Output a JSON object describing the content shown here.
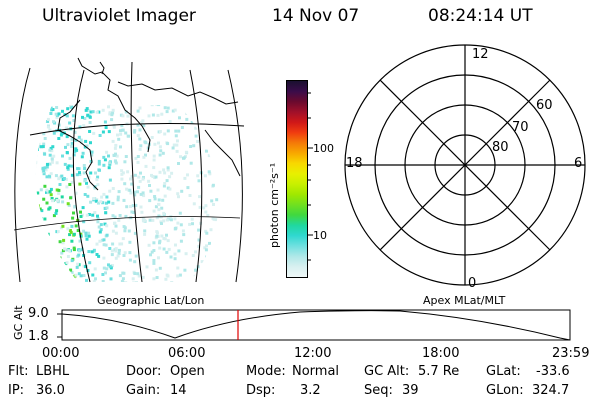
{
  "header": {
    "title": "Ultraviolet Imager",
    "date": "14 Nov 07",
    "time": "08:24:14 UT"
  },
  "colorbar": {
    "unit_label": "photon cm⁻²s⁻¹",
    "ticks": [
      "100",
      "10"
    ],
    "colors": [
      "#1a1030",
      "#3a0c4a",
      "#6a0a2e",
      "#a0102a",
      "#d01818",
      "#f03c10",
      "#f47a08",
      "#f8a800",
      "#f8d800",
      "#e8f000",
      "#c8f000",
      "#a0e800",
      "#70e020",
      "#40d840",
      "#20d8a0",
      "#30d8d0",
      "#70e0e0",
      "#b0e8e8",
      "#d8f0f0",
      "#f0f8f8"
    ]
  },
  "geo_panel": {
    "label": "Geographic Lat/Lon"
  },
  "polar_panel": {
    "label": "Apex MLat/MLT",
    "mlt_labels": {
      "top": "12",
      "bottom": "0",
      "left": "18",
      "right": "6"
    },
    "lat_labels": [
      "60",
      "70",
      "80"
    ]
  },
  "altitude_plot": {
    "axis_label": "GC Alt",
    "y_ticks": [
      "9.0",
      "1.8"
    ],
    "x_ticks": [
      "00:00",
      "06:00",
      "12:00",
      "18:00",
      "23:59"
    ],
    "marker_color": "#e00000"
  },
  "status": {
    "col1": {
      "flt_label": "Flt:",
      "flt_value": "LBHL",
      "ip_label": "IP:",
      "ip_value": "36.0"
    },
    "col2": {
      "door_label": "Door:",
      "door_value": "Open",
      "gain_label": "Gain:",
      "gain_value": "14"
    },
    "col3": {
      "mode_label": "Mode:",
      "mode_value": "Normal",
      "dsp_label": "Dsp:",
      "dsp_value": "3.2"
    },
    "col4": {
      "gcalt_label": "GC Alt:",
      "gcalt_value": "5.7 Re",
      "seq_label": "Seq:",
      "seq_value": "39"
    },
    "col5": {
      "glat_label": "GLat:",
      "glat_value": "-33.6",
      "glon_label": "GLon:",
      "glon_value": "324.7"
    }
  }
}
